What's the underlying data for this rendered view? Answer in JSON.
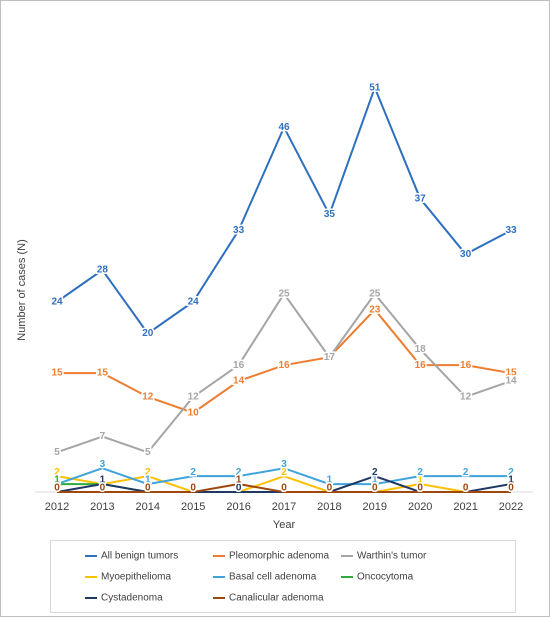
{
  "chart_data": {
    "type": "line",
    "x": [
      2012,
      2013,
      2014,
      2015,
      2016,
      2017,
      2018,
      2019,
      2020,
      2021,
      2022
    ],
    "xlabel": "Year",
    "ylabel": "Number of cases (N)",
    "ylim": [
      0,
      55
    ],
    "series": [
      {
        "name": "All benign tumors",
        "color": "#2f6fc0",
        "values": [
          24,
          28,
          20,
          24,
          33,
          46,
          35,
          51,
          37,
          30,
          33
        ]
      },
      {
        "name": "Pleomorphic adenoma",
        "color": "#ed7d31",
        "values": [
          15,
          15,
          12,
          10,
          14,
          16,
          17,
          23,
          16,
          16,
          15
        ]
      },
      {
        "name": "Warthin's tumor",
        "color": "#a5a5a5",
        "values": [
          5,
          7,
          5,
          12,
          16,
          25,
          17,
          25,
          18,
          12,
          14
        ]
      },
      {
        "name": "Myoepithelioma",
        "color": "#ffc000",
        "values": [
          2,
          1,
          2,
          0,
          0,
          2,
          0,
          0,
          1,
          0,
          0
        ]
      },
      {
        "name": "Basal cell adenoma",
        "color": "#3fa3dc",
        "values": [
          1,
          3,
          1,
          2,
          2,
          3,
          1,
          1,
          2,
          2,
          2
        ]
      },
      {
        "name": "Oncocytoma",
        "color": "#2eab3b",
        "values": [
          1,
          1,
          0,
          0,
          0,
          0,
          0,
          0,
          0,
          0,
          0
        ]
      },
      {
        "name": "Cystadenoma",
        "color": "#1f3864",
        "values": [
          0,
          1,
          0,
          0,
          0,
          0,
          0,
          2,
          0,
          0,
          1
        ]
      },
      {
        "name": "Canalicular adenoma",
        "color": "#9e480e",
        "values": [
          0,
          0,
          0,
          0,
          1,
          0,
          0,
          0,
          0,
          0,
          0
        ]
      }
    ]
  }
}
